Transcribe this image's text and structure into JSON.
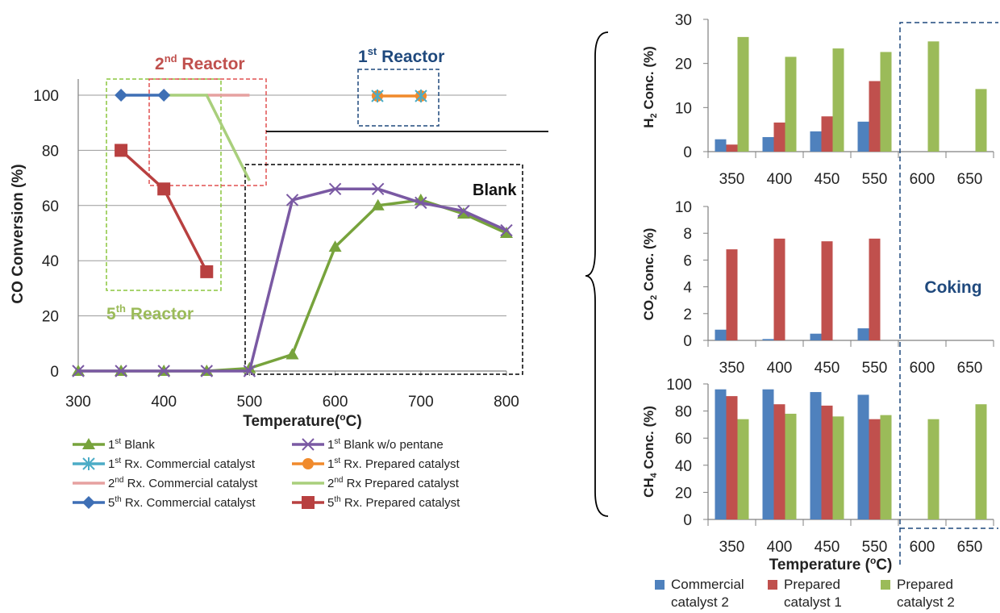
{
  "chart_data": [
    {
      "type": "line",
      "xlabel": "Temperature(oC)",
      "ylabel": "CO Conversion (%)",
      "xlim": [
        300,
        800
      ],
      "ylim": [
        0,
        100
      ],
      "x_ticks": [
        "300",
        "400",
        "500",
        "600",
        "700",
        "800"
      ],
      "y_ticks": [
        "0",
        "20",
        "40",
        "60",
        "80",
        "100"
      ],
      "grid": "horizontal",
      "legend_position": "bottom",
      "series": [
        {
          "name": "1st Blank",
          "color": "#77a33c",
          "marker": "triangle",
          "x": [
            300,
            350,
            400,
            450,
            500,
            550,
            600,
            650,
            700,
            750,
            800
          ],
          "y": [
            0,
            0,
            0,
            0,
            1,
            6,
            45,
            60,
            62,
            57,
            50
          ]
        },
        {
          "name": "1st Blank w/o pentane",
          "color": "#7a59a3",
          "marker": "x",
          "x": [
            300,
            350,
            400,
            450,
            500,
            550,
            600,
            650,
            700,
            750,
            800
          ],
          "y": [
            0,
            0,
            0,
            0,
            0,
            62,
            66,
            66,
            61,
            58,
            51
          ]
        },
        {
          "name": "1st Rx. Commercial catalyst",
          "color": "#4bacc6",
          "marker": "star",
          "x": [],
          "y": []
        },
        {
          "name": "1st Rx. Prepared catalyst",
          "color": "#f08a2c",
          "marker": "circle",
          "x": [],
          "y": []
        },
        {
          "name": "2nd Rx. Commercial catalyst",
          "color": "#e6a1a0",
          "marker": "none",
          "x": [
            450,
            500
          ],
          "y": [
            100,
            100
          ]
        },
        {
          "name": "2nd Rx Prepared catalyst",
          "color": "#a9cf7c",
          "marker": "none",
          "x": [
            400,
            450,
            500
          ],
          "y": [
            100,
            100,
            69
          ]
        },
        {
          "name": "5th Rx. Commercial catalyst",
          "color": "#3e6fb5",
          "marker": "diamond",
          "x": [
            350,
            400
          ],
          "y": [
            100,
            100
          ]
        },
        {
          "name": "5th Rx. Prepared catalyst",
          "color": "#b84040",
          "marker": "square",
          "x": [
            350,
            400,
            450
          ],
          "y": [
            80,
            66,
            36
          ]
        }
      ],
      "annotations": [
        "2nd Reactor",
        "1st Reactor",
        "5th Reactor",
        "Blank"
      ]
    },
    {
      "type": "bar",
      "categories": [
        "350",
        "400",
        "450",
        "550",
        "600",
        "650"
      ],
      "ylabel": "H2 Conc. (%)",
      "ylim": [
        0,
        30
      ],
      "y_ticks": [
        "0",
        "10",
        "20",
        "30"
      ],
      "series": [
        {
          "name": "Commercial catalyst 2",
          "color": "#4f81bd",
          "values": [
            2.8,
            3.3,
            4.6,
            6.8,
            0,
            0
          ]
        },
        {
          "name": "Prepared catalyst 1",
          "color": "#c0504d",
          "values": [
            1.6,
            6.6,
            8.0,
            16.0,
            0,
            0
          ]
        },
        {
          "name": "Prepared catalyst 2",
          "color": "#9bbb59",
          "values": [
            26.0,
            21.5,
            23.4,
            22.6,
            25.0,
            14.2
          ]
        }
      ]
    },
    {
      "type": "bar",
      "categories": [
        "350",
        "400",
        "450",
        "550",
        "600",
        "650"
      ],
      "ylabel": "CO2 Conc. (%)",
      "ylim": [
        0,
        10
      ],
      "y_ticks": [
        "0",
        "2",
        "4",
        "6",
        "8",
        "10"
      ],
      "series": [
        {
          "name": "Commercial catalyst 2",
          "color": "#4f81bd",
          "values": [
            0.8,
            0.1,
            0.5,
            0.9,
            0,
            0
          ]
        },
        {
          "name": "Prepared catalyst 1",
          "color": "#c0504d",
          "values": [
            6.8,
            7.6,
            7.4,
            7.6,
            0,
            0
          ]
        },
        {
          "name": "Prepared catalyst 2",
          "color": "#9bbb59",
          "values": [
            0,
            0,
            0,
            0,
            0,
            0
          ]
        }
      ],
      "annotations": [
        "Coking"
      ]
    },
    {
      "type": "bar",
      "categories": [
        "350",
        "400",
        "450",
        "550",
        "600",
        "650"
      ],
      "xlabel": "Temperature (oC)",
      "ylabel": "CH4 Conc. (%)",
      "ylim": [
        0,
        100
      ],
      "y_ticks": [
        "0",
        "20",
        "40",
        "60",
        "80",
        "100"
      ],
      "legend_position": "bottom",
      "series": [
        {
          "name": "Commercial catalyst 2",
          "color": "#4f81bd",
          "values": [
            96,
            96,
            94,
            92,
            0,
            0
          ]
        },
        {
          "name": "Prepared catalyst 1",
          "color": "#c0504d",
          "values": [
            91,
            85,
            84,
            74,
            0,
            0
          ]
        },
        {
          "name": "Prepared catalyst 2",
          "color": "#9bbb59",
          "values": [
            74,
            78,
            76,
            77,
            74,
            85
          ]
        }
      ]
    }
  ]
}
